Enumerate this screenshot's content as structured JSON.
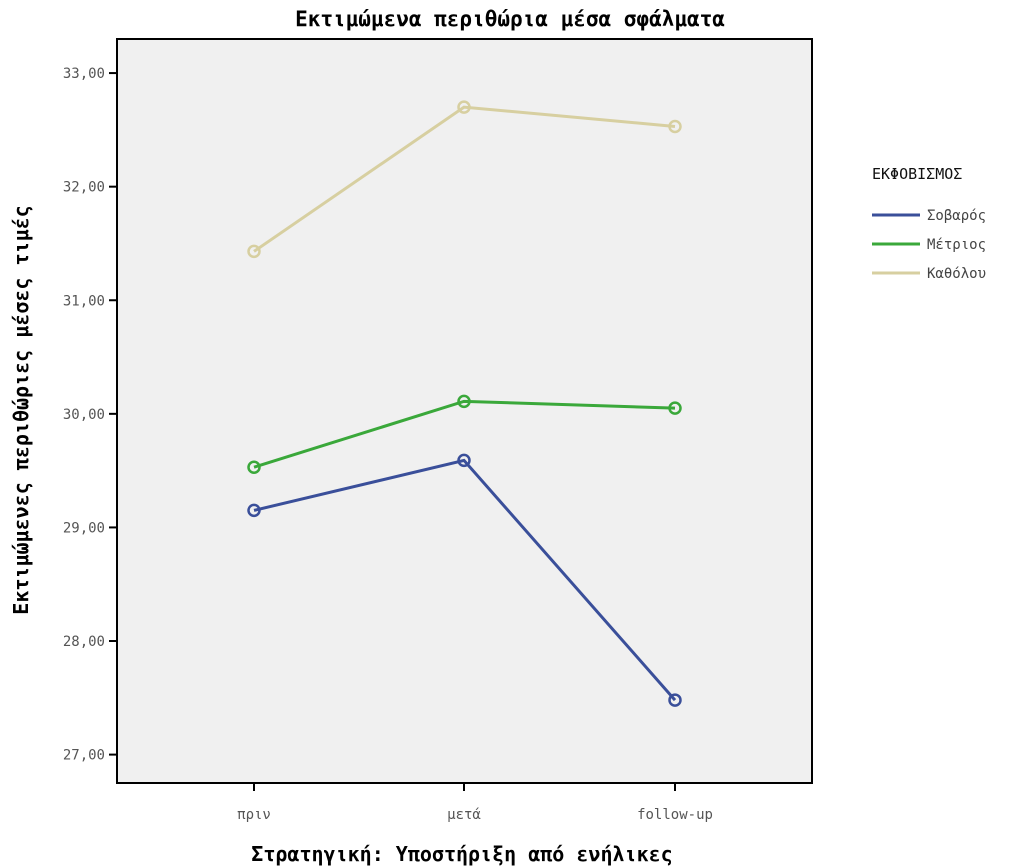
{
  "chart_data": {
    "type": "line",
    "title": "Εκτιμώμενα περιθώρια μέσα σφάλματα",
    "xlabel": "Στρατηγική: Υποστήριξη από ενήλικες",
    "ylabel": "Εκτιμώμενες περιθώριες μέσες τιμές",
    "categories": [
      "πριν",
      "μετά",
      "follow-up"
    ],
    "ylim": [
      26.75,
      33.3
    ],
    "yticks": [
      27,
      28,
      29,
      30,
      31,
      32,
      33
    ],
    "ytick_labels": [
      "27,00",
      "28,00",
      "29,00",
      "30,00",
      "31,00",
      "32,00",
      "33,00"
    ],
    "grid": false,
    "legend": {
      "title": "ΕΚΦΟΒΙΣΜΟΣ",
      "position": "right"
    },
    "series": [
      {
        "name": "Σοβαρός",
        "color": "#3a4f9a",
        "values": [
          29.15,
          29.59,
          27.48
        ]
      },
      {
        "name": "Μέτριος",
        "color": "#3aa83a",
        "values": [
          29.53,
          30.11,
          30.05
        ]
      },
      {
        "name": "Καθόλου",
        "color": "#d7cfa0",
        "values": [
          31.43,
          32.7,
          32.53
        ]
      }
    ],
    "plot_background": "#f0f0f0"
  }
}
